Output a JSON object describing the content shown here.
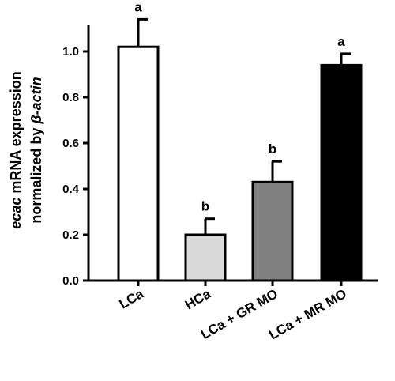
{
  "chart_data": {
    "type": "bar",
    "categories": [
      "LCa",
      "HCa",
      "LCa + GR MO",
      "LCa + MR MO"
    ],
    "values": [
      1.02,
      0.2,
      0.43,
      0.94
    ],
    "errors": [
      0.12,
      0.07,
      0.09,
      0.05
    ],
    "significance": [
      "a",
      "b",
      "b",
      "a"
    ],
    "bar_colors": [
      "#ffffff",
      "#d9d9d9",
      "#808080",
      "#000000"
    ],
    "ylabel_line1_italic": "ecac",
    "ylabel_line1_rest": " mRNA expression",
    "ylabel_line2_rest": "normalized by ",
    "ylabel_line2_italic": "β-actin",
    "ylim": [
      0,
      1.1
    ],
    "yticks": [
      "0.0",
      "0.2",
      "0.4",
      "0.6",
      "0.8",
      "1.0"
    ],
    "ytick_values": [
      0,
      0.2,
      0.4,
      0.6,
      0.8,
      1.0
    ],
    "grid": false
  }
}
